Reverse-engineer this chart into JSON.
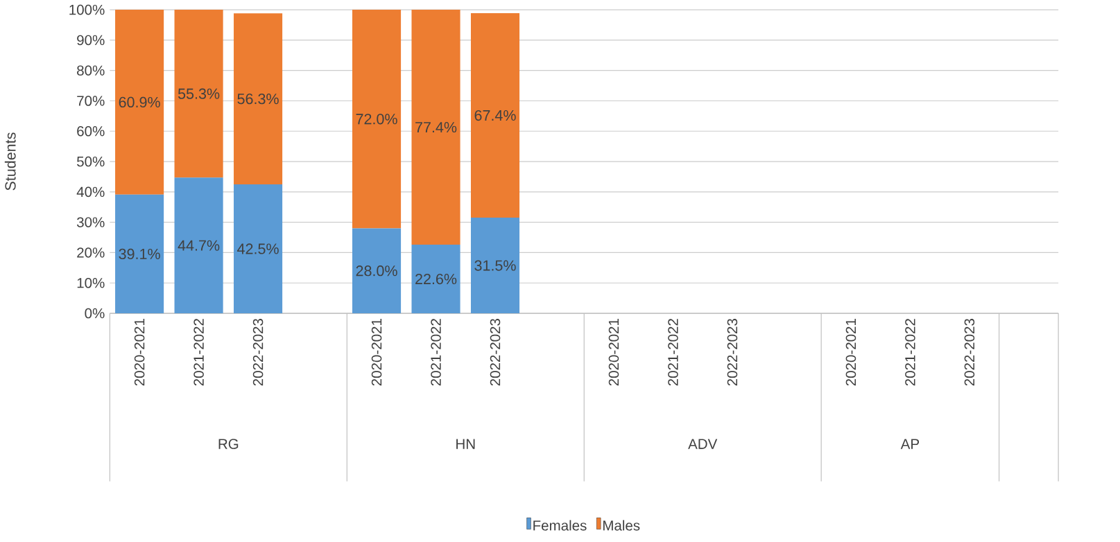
{
  "chart_data": {
    "type": "bar",
    "stacked": true,
    "ylabel": "Students",
    "categories": [
      "2020-2021",
      "2021-2022",
      "2022-2023",
      null,
      "2020-2021",
      "2021-2022",
      "2022-2023",
      null,
      "2020-2021",
      "2021-2022",
      "2022-2023",
      null,
      "2020-2021",
      "2021-2022",
      "2022-2023",
      null
    ],
    "series": [
      {
        "name": "Females",
        "color": "#5b9bd5",
        "values": [
          39.1,
          44.7,
          42.5,
          null,
          28.0,
          22.6,
          31.5,
          null,
          null,
          null,
          null,
          null,
          null,
          null,
          null,
          null
        ],
        "value_labels": [
          "39.1%",
          "44.7%",
          "42.5%",
          null,
          "28.0%",
          "22.6%",
          "31.5%",
          null,
          null,
          null,
          null,
          null,
          null,
          null,
          null,
          null
        ]
      },
      {
        "name": "Males",
        "color": "#ed7d31",
        "values": [
          60.9,
          55.3,
          56.3,
          null,
          72.0,
          77.4,
          67.4,
          null,
          null,
          null,
          null,
          null,
          null,
          null,
          null,
          null
        ],
        "value_labels": [
          "60.9%",
          "55.3%",
          "56.3%",
          null,
          "72.0%",
          "77.4%",
          "67.4%",
          null,
          null,
          null,
          null,
          null,
          null,
          null,
          null,
          null
        ]
      }
    ],
    "annotations": [
      "RG",
      "HN",
      "ADV",
      "AP"
    ],
    "ylim": [
      0,
      100
    ],
    "yticks": [
      {
        "value": 0,
        "label": "0%"
      },
      {
        "value": 10,
        "label": "10%"
      },
      {
        "value": 20,
        "label": "20%"
      },
      {
        "value": 30,
        "label": "30%"
      },
      {
        "value": 40,
        "label": "40%"
      },
      {
        "value": 50,
        "label": "50%"
      },
      {
        "value": 60,
        "label": "60%"
      },
      {
        "value": 70,
        "label": "70%"
      },
      {
        "value": 80,
        "label": "80%"
      },
      {
        "value": 90,
        "label": "90%"
      },
      {
        "value": 100,
        "label": "100%"
      }
    ],
    "grid": "y",
    "legend": "bottom"
  }
}
